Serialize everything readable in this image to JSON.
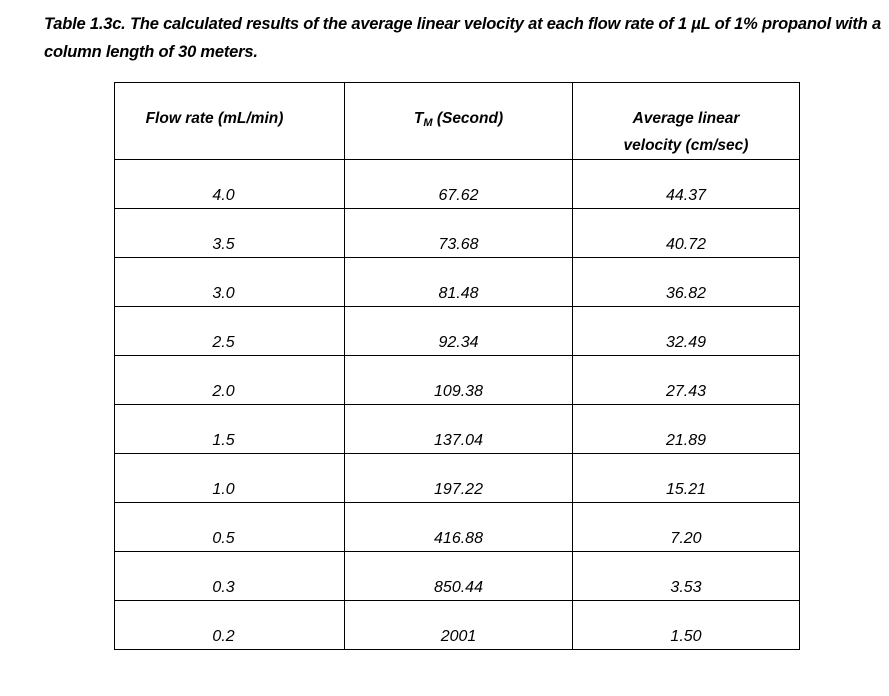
{
  "caption": "Table 1.3c. The calculated results of the average linear velocity at each flow rate of 1 µL of 1% propanol with a column length of 30 meters.",
  "table": {
    "headers": {
      "flow_rate": "Flow rate (mL/min)",
      "tm_main": "T",
      "tm_sub": "M",
      "tm_unit": "(Second)",
      "velocity_line1": "Average linear",
      "velocity_line2": "velocity (cm/sec)"
    },
    "rows": [
      [
        "4.0",
        "67.62",
        "44.37"
      ],
      [
        "3.5",
        "73.68",
        "40.72"
      ],
      [
        "3.0",
        "81.48",
        "36.82"
      ],
      [
        "2.5",
        "92.34",
        "32.49"
      ],
      [
        "2.0",
        "109.38",
        "27.43"
      ],
      [
        "1.5",
        "137.04",
        "21.89"
      ],
      [
        "1.0",
        "197.22",
        "15.21"
      ],
      [
        "0.5",
        "416.88",
        "7.20"
      ],
      [
        "0.3",
        "850.44",
        "3.53"
      ],
      [
        "0.2",
        "2001",
        "1.50"
      ]
    ]
  }
}
